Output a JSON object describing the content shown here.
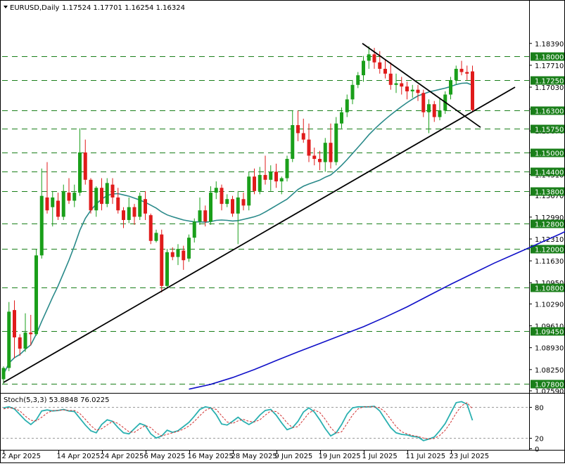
{
  "header": {
    "symbol": "EURUSD,Daily",
    "ohlc": "1.17524 1.17701 1.16254 1.16324"
  },
  "colors": {
    "bull": "#1a9f1a",
    "bear": "#e01b1b",
    "sma_fast": "#2a8a8a",
    "sma_slow": "#1010c8",
    "level": "#1a7f1a",
    "stoch_main": "#2ab0b0",
    "stoch_signal": "#d03030",
    "trendline": "#000000"
  },
  "chart_data": [
    {
      "type": "candlestick",
      "title": "EURUSD,Daily",
      "ylim": [
        1.0759,
        1.1939
      ],
      "y_ticks": [
        1.1839,
        1.1771,
        1.1703,
        1.1635,
        1.1567,
        1.1499,
        1.1431,
        1.1367,
        1.1299,
        1.1231,
        1.1163,
        1.1095,
        1.1029,
        1.0961,
        1.0893,
        1.0825,
        1.0759
      ],
      "y_tick_labels": [
        "1.18390",
        "1.17710",
        "1.17030",
        "1.16350",
        "1.15670",
        "1.14990",
        "1.14310",
        "1.13670",
        "1.12990",
        "1.12310",
        "1.11630",
        "1.10950",
        "1.10290",
        "1.09610",
        "1.08930",
        "1.08250",
        "1.07590"
      ],
      "x_tick_labels": [
        "2 Apr 2025",
        "14 Apr 2025",
        "24 Apr 2025",
        "6 May 2025",
        "16 May 2025",
        "28 May 2025",
        "9 Jun 2025",
        "19 Jun 2025",
        "1 Jul 2025",
        "11 Jul 2025",
        "23 Jul 2025"
      ],
      "x_tick_index": [
        0,
        10,
        18,
        26,
        34,
        42,
        50,
        58,
        66,
        74,
        82
      ],
      "horizontal_levels": [
        1.18,
        1.1725,
        1.163,
        1.1575,
        1.15,
        1.144,
        1.138,
        1.128,
        1.12,
        1.108,
        1.0945,
        1.078
      ],
      "horizontal_level_labels": [
        "1.18000",
        "1.17250",
        "1.16300",
        "1.15750",
        "1.15000",
        "1.14400",
        "1.13800",
        "1.12800",
        "1.12000",
        "1.10800",
        "1.09450",
        "1.07800"
      ],
      "candles": [
        {
          "o": 1.0795,
          "h": 1.0835,
          "l": 1.0779,
          "c": 1.083
        },
        {
          "o": 1.083,
          "h": 1.1035,
          "l": 1.082,
          "c": 1.1005
        },
        {
          "o": 1.101,
          "h": 1.104,
          "l": 1.086,
          "c": 1.0925
        },
        {
          "o": 1.0925,
          "h": 1.0935,
          "l": 1.0868,
          "c": 1.089
        },
        {
          "o": 1.089,
          "h": 1.1,
          "l": 1.088,
          "c": 1.094
        },
        {
          "o": 1.094,
          "h": 1.0995,
          "l": 1.09,
          "c": 1.0935
        },
        {
          "o": 1.0935,
          "h": 1.12,
          "l": 1.093,
          "c": 1.118
        },
        {
          "o": 1.118,
          "h": 1.145,
          "l": 1.117,
          "c": 1.1365
        },
        {
          "o": 1.136,
          "h": 1.147,
          "l": 1.131,
          "c": 1.132
        },
        {
          "o": 1.133,
          "h": 1.138,
          "l": 1.127,
          "c": 1.136
        },
        {
          "o": 1.135,
          "h": 1.1375,
          "l": 1.129,
          "c": 1.13
        },
        {
          "o": 1.13,
          "h": 1.14,
          "l": 1.129,
          "c": 1.138
        },
        {
          "o": 1.1375,
          "h": 1.142,
          "l": 1.134,
          "c": 1.135
        },
        {
          "o": 1.135,
          "h": 1.14,
          "l": 1.133,
          "c": 1.1375
        },
        {
          "o": 1.1375,
          "h": 1.1575,
          "l": 1.1365,
          "c": 1.15
        },
        {
          "o": 1.15,
          "h": 1.154,
          "l": 1.14,
          "c": 1.1415
        },
        {
          "o": 1.1415,
          "h": 1.142,
          "l": 1.131,
          "c": 1.132
        },
        {
          "o": 1.132,
          "h": 1.1395,
          "l": 1.13,
          "c": 1.139
        },
        {
          "o": 1.139,
          "h": 1.142,
          "l": 1.132,
          "c": 1.134
        },
        {
          "o": 1.134,
          "h": 1.142,
          "l": 1.133,
          "c": 1.1405
        },
        {
          "o": 1.14,
          "h": 1.142,
          "l": 1.134,
          "c": 1.136
        },
        {
          "o": 1.136,
          "h": 1.139,
          "l": 1.131,
          "c": 1.132
        },
        {
          "o": 1.132,
          "h": 1.133,
          "l": 1.1265,
          "c": 1.129
        },
        {
          "o": 1.129,
          "h": 1.136,
          "l": 1.128,
          "c": 1.133
        },
        {
          "o": 1.133,
          "h": 1.134,
          "l": 1.1275,
          "c": 1.13
        },
        {
          "o": 1.13,
          "h": 1.1375,
          "l": 1.129,
          "c": 1.1365
        },
        {
          "o": 1.1355,
          "h": 1.138,
          "l": 1.129,
          "c": 1.131
        },
        {
          "o": 1.1305,
          "h": 1.131,
          "l": 1.1215,
          "c": 1.1225
        },
        {
          "o": 1.1225,
          "h": 1.126,
          "l": 1.122,
          "c": 1.125
        },
        {
          "o": 1.1245,
          "h": 1.126,
          "l": 1.1065,
          "c": 1.1085
        },
        {
          "o": 1.1085,
          "h": 1.12,
          "l": 1.108,
          "c": 1.119
        },
        {
          "o": 1.119,
          "h": 1.1205,
          "l": 1.1165,
          "c": 1.1175
        },
        {
          "o": 1.1175,
          "h": 1.1215,
          "l": 1.115,
          "c": 1.12
        },
        {
          "o": 1.1195,
          "h": 1.121,
          "l": 1.1135,
          "c": 1.1165
        },
        {
          "o": 1.117,
          "h": 1.1245,
          "l": 1.116,
          "c": 1.1235
        },
        {
          "o": 1.1235,
          "h": 1.1295,
          "l": 1.122,
          "c": 1.1285
        },
        {
          "o": 1.1285,
          "h": 1.136,
          "l": 1.1275,
          "c": 1.132
        },
        {
          "o": 1.132,
          "h": 1.1335,
          "l": 1.127,
          "c": 1.1285
        },
        {
          "o": 1.1285,
          "h": 1.1395,
          "l": 1.1275,
          "c": 1.1375
        },
        {
          "o": 1.1375,
          "h": 1.141,
          "l": 1.1355,
          "c": 1.139
        },
        {
          "o": 1.139,
          "h": 1.14,
          "l": 1.132,
          "c": 1.134
        },
        {
          "o": 1.134,
          "h": 1.137,
          "l": 1.133,
          "c": 1.1355
        },
        {
          "o": 1.1355,
          "h": 1.1365,
          "l": 1.13,
          "c": 1.131
        },
        {
          "o": 1.131,
          "h": 1.138,
          "l": 1.1215,
          "c": 1.136
        },
        {
          "o": 1.1355,
          "h": 1.1375,
          "l": 1.132,
          "c": 1.1335
        },
        {
          "o": 1.1335,
          "h": 1.144,
          "l": 1.132,
          "c": 1.1425
        },
        {
          "o": 1.1425,
          "h": 1.145,
          "l": 1.137,
          "c": 1.138
        },
        {
          "o": 1.138,
          "h": 1.1455,
          "l": 1.137,
          "c": 1.143
        },
        {
          "o": 1.143,
          "h": 1.149,
          "l": 1.14,
          "c": 1.1415
        },
        {
          "o": 1.1415,
          "h": 1.146,
          "l": 1.138,
          "c": 1.144
        },
        {
          "o": 1.144,
          "h": 1.1465,
          "l": 1.139,
          "c": 1.141
        },
        {
          "o": 1.141,
          "h": 1.1425,
          "l": 1.137,
          "c": 1.142
        },
        {
          "o": 1.142,
          "h": 1.149,
          "l": 1.141,
          "c": 1.148
        },
        {
          "o": 1.148,
          "h": 1.163,
          "l": 1.147,
          "c": 1.1585
        },
        {
          "o": 1.1585,
          "h": 1.163,
          "l": 1.1535,
          "c": 1.156
        },
        {
          "o": 1.156,
          "h": 1.1605,
          "l": 1.153,
          "c": 1.154
        },
        {
          "o": 1.154,
          "h": 1.159,
          "l": 1.147,
          "c": 1.149
        },
        {
          "o": 1.149,
          "h": 1.1515,
          "l": 1.146,
          "c": 1.148
        },
        {
          "o": 1.148,
          "h": 1.1505,
          "l": 1.1445,
          "c": 1.147
        },
        {
          "o": 1.147,
          "h": 1.1545,
          "l": 1.144,
          "c": 1.153
        },
        {
          "o": 1.153,
          "h": 1.159,
          "l": 1.145,
          "c": 1.147
        },
        {
          "o": 1.147,
          "h": 1.161,
          "l": 1.146,
          "c": 1.159
        },
        {
          "o": 1.159,
          "h": 1.164,
          "l": 1.1575,
          "c": 1.1625
        },
        {
          "o": 1.1625,
          "h": 1.168,
          "l": 1.161,
          "c": 1.1665
        },
        {
          "o": 1.1665,
          "h": 1.1725,
          "l": 1.165,
          "c": 1.171
        },
        {
          "o": 1.171,
          "h": 1.175,
          "l": 1.17,
          "c": 1.174
        },
        {
          "o": 1.174,
          "h": 1.18,
          "l": 1.172,
          "c": 1.1785
        },
        {
          "o": 1.1785,
          "h": 1.183,
          "l": 1.176,
          "c": 1.1805
        },
        {
          "o": 1.1805,
          "h": 1.1825,
          "l": 1.176,
          "c": 1.178
        },
        {
          "o": 1.178,
          "h": 1.1815,
          "l": 1.1745,
          "c": 1.176
        },
        {
          "o": 1.176,
          "h": 1.179,
          "l": 1.173,
          "c": 1.1745
        },
        {
          "o": 1.1745,
          "h": 1.178,
          "l": 1.1695,
          "c": 1.171
        },
        {
          "o": 1.171,
          "h": 1.1745,
          "l": 1.1685,
          "c": 1.1715
        },
        {
          "o": 1.1715,
          "h": 1.1735,
          "l": 1.168,
          "c": 1.1705
        },
        {
          "o": 1.1705,
          "h": 1.172,
          "l": 1.1665,
          "c": 1.169
        },
        {
          "o": 1.169,
          "h": 1.171,
          "l": 1.167,
          "c": 1.1695
        },
        {
          "o": 1.1695,
          "h": 1.171,
          "l": 1.166,
          "c": 1.1685
        },
        {
          "o": 1.1685,
          "h": 1.1695,
          "l": 1.161,
          "c": 1.1625
        },
        {
          "o": 1.1625,
          "h": 1.1665,
          "l": 1.156,
          "c": 1.165
        },
        {
          "o": 1.165,
          "h": 1.166,
          "l": 1.1595,
          "c": 1.161
        },
        {
          "o": 1.161,
          "h": 1.167,
          "l": 1.16,
          "c": 1.163
        },
        {
          "o": 1.163,
          "h": 1.169,
          "l": 1.162,
          "c": 1.168
        },
        {
          "o": 1.168,
          "h": 1.1735,
          "l": 1.1665,
          "c": 1.1725
        },
        {
          "o": 1.1725,
          "h": 1.177,
          "l": 1.171,
          "c": 1.176
        },
        {
          "o": 1.176,
          "h": 1.1785,
          "l": 1.174,
          "c": 1.175
        },
        {
          "o": 1.175,
          "h": 1.177,
          "l": 1.1725,
          "c": 1.1745
        },
        {
          "o": 1.1752,
          "h": 1.177,
          "l": 1.1625,
          "c": 1.1632
        }
      ],
      "sma_fast_20": [
        1.081,
        1.0845,
        1.0862,
        1.0872,
        1.0888,
        1.0902,
        1.0935,
        1.0975,
        1.1012,
        1.105,
        1.1085,
        1.1125,
        1.1165,
        1.121,
        1.1258,
        1.1295,
        1.132,
        1.134,
        1.1355,
        1.1366,
        1.1371,
        1.1372,
        1.1368,
        1.1364,
        1.1358,
        1.1352,
        1.1345,
        1.1336,
        1.1327,
        1.1315,
        1.1306,
        1.13,
        1.1295,
        1.129,
        1.1287,
        1.1284,
        1.1284,
        1.1283,
        1.1285,
        1.1289,
        1.129,
        1.1289,
        1.1287,
        1.1288,
        1.1292,
        1.1296,
        1.13,
        1.1306,
        1.1315,
        1.1325,
        1.1335,
        1.1345,
        1.1355,
        1.137,
        1.1385,
        1.1395,
        1.1402,
        1.1408,
        1.1414,
        1.1423,
        1.143,
        1.1444,
        1.146,
        1.1478,
        1.1497,
        1.1516,
        1.1535,
        1.1555,
        1.1572,
        1.1588,
        1.1603,
        1.1617,
        1.163,
        1.1643,
        1.1655,
        1.1666,
        1.1676,
        1.1682,
        1.1688,
        1.1692,
        1.1696,
        1.17,
        1.1705,
        1.1711,
        1.1715,
        1.1716,
        1.1709
      ],
      "sma_slow_200_points": [
        [
          34,
          1.0764
        ],
        [
          38,
          1.0779
        ],
        [
          42,
          1.08
        ],
        [
          46,
          1.0825
        ],
        [
          50,
          1.0853
        ],
        [
          54,
          1.088
        ],
        [
          58,
          1.0906
        ],
        [
          62,
          1.0932
        ],
        [
          66,
          1.0958
        ],
        [
          70,
          1.0988
        ],
        [
          74,
          1.102
        ],
        [
          78,
          1.1055
        ],
        [
          82,
          1.109
        ],
        [
          86,
          1.1123
        ],
        [
          90,
          1.1156
        ],
        [
          94,
          1.1186
        ],
        [
          98,
          1.1216
        ],
        [
          102,
          1.1246
        ],
        [
          106,
          1.1278
        ],
        [
          110,
          1.1305
        ],
        [
          114,
          1.1327
        ],
        [
          116,
          1.1335
        ]
      ]
    },
    {
      "type": "line",
      "title": "Stoch(5,3,3) 53.8848 76.0225",
      "ylim": [
        0,
        100
      ],
      "y_ticks": [
        80,
        20,
        0
      ],
      "y_tick_labels": [
        "80",
        "20",
        "0"
      ],
      "series": [
        {
          "name": "Main",
          "values": [
            78,
            80,
            76,
            65,
            54,
            46,
            55,
            72,
            74,
            72,
            73,
            75,
            72,
            71,
            58,
            45,
            34,
            30,
            46,
            55,
            52,
            40,
            30,
            28,
            38,
            48,
            44,
            28,
            20,
            24,
            35,
            31,
            34,
            42,
            50,
            62,
            75,
            80,
            78,
            65,
            47,
            45,
            52,
            60,
            52,
            46,
            52,
            64,
            73,
            75,
            64,
            49,
            36,
            40,
            52,
            70,
            78,
            70,
            55,
            38,
            24,
            30,
            46,
            66,
            78,
            80,
            80,
            80,
            81,
            72,
            56,
            40,
            30,
            27,
            26,
            23,
            22,
            15,
            18,
            22,
            34,
            48,
            68,
            88,
            90,
            85,
            54
          ]
        },
        {
          "name": "Signal",
          "values": [
            76,
            78,
            77,
            72,
            62,
            54,
            53,
            60,
            68,
            73,
            73,
            74,
            73,
            73,
            67,
            56,
            44,
            35,
            38,
            45,
            52,
            48,
            40,
            32,
            31,
            38,
            44,
            40,
            30,
            24,
            27,
            30,
            33,
            37,
            43,
            52,
            63,
            73,
            78,
            75,
            63,
            51,
            48,
            53,
            56,
            52,
            51,
            55,
            64,
            72,
            71,
            62,
            49,
            40,
            42,
            55,
            68,
            74,
            69,
            56,
            40,
            29,
            32,
            48,
            64,
            76,
            80,
            80,
            80,
            78,
            70,
            56,
            42,
            32,
            28,
            25,
            23,
            20,
            18,
            19,
            25,
            35,
            50,
            68,
            82,
            88,
            76
          ]
        }
      ]
    }
  ]
}
